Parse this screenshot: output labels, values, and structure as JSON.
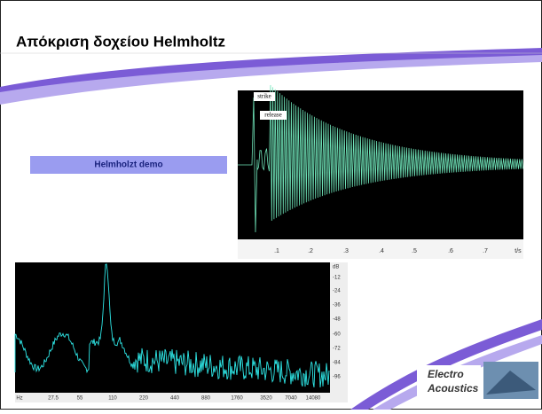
{
  "slide": {
    "title": "Απόκριση δοχείου Helmholtz"
  },
  "button": {
    "label": "Helmholzt demo"
  },
  "waveform": {
    "labels": [
      "strike",
      "release"
    ],
    "xticks": [
      ".1",
      ".2",
      ".3",
      ".4",
      ".5",
      ".6",
      ".7",
      "t/s"
    ]
  },
  "spectrum": {
    "yticks": [
      "dB",
      "-12",
      "-24",
      "-36",
      "-48",
      "-60",
      "-72",
      "-84",
      "-96"
    ],
    "xticks": [
      "Hz",
      "27.5",
      "55",
      "110",
      "220",
      "440",
      "880",
      "1760",
      "3520",
      "7040",
      "14080"
    ]
  },
  "logo": {
    "lines": [
      "Electro",
      "Acoustics"
    ]
  }
}
